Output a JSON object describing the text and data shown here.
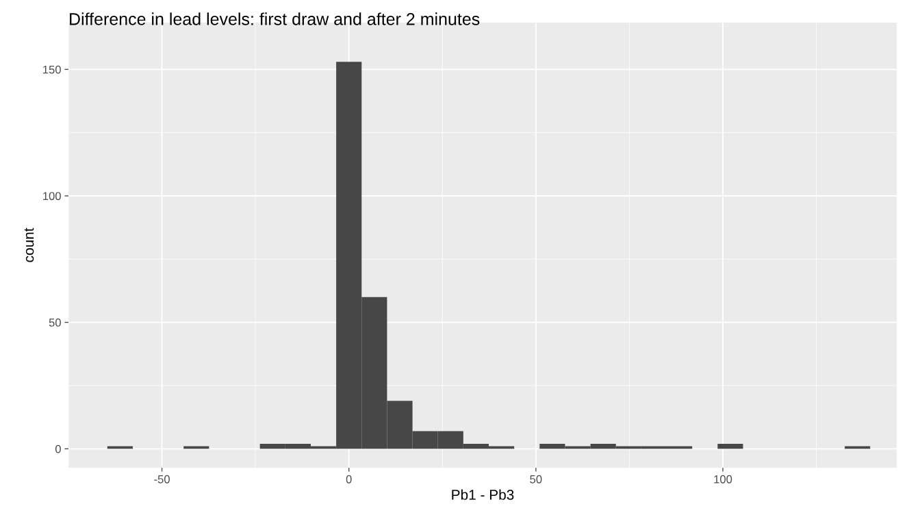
{
  "chart_data": {
    "type": "histogram",
    "title": "Difference in lead levels: first draw and after 2 minutes",
    "xlabel": "Pb1 - Pb3",
    "ylabel": "count",
    "bins": [
      -64.6,
      -57.8,
      -51,
      -44.2,
      -37.4,
      -30.6,
      -23.8,
      -17,
      -10.2,
      -3.4,
      3.4,
      10.2,
      17,
      23.8,
      30.6,
      37.4,
      44.2,
      51,
      57.8,
      64.6,
      71.4,
      78.2,
      85,
      91.8,
      98.6,
      105.4,
      112.2,
      119,
      125.8,
      132.6,
      139.4
    ],
    "values": [
      1,
      0,
      0,
      1,
      0,
      0,
      2,
      2,
      1,
      153,
      60,
      19,
      7,
      7,
      2,
      1,
      0,
      2,
      1,
      2,
      1,
      1,
      1,
      0,
      2,
      0,
      0,
      0,
      0,
      1
    ],
    "color": "#474747",
    "xlim": [
      -75,
      146.5
    ],
    "xticks": [
      -50,
      0,
      50,
      100
    ],
    "ylim": [
      -7.5,
      168.5
    ],
    "yticks": [
      0,
      50,
      100,
      150
    ],
    "grid": true
  }
}
